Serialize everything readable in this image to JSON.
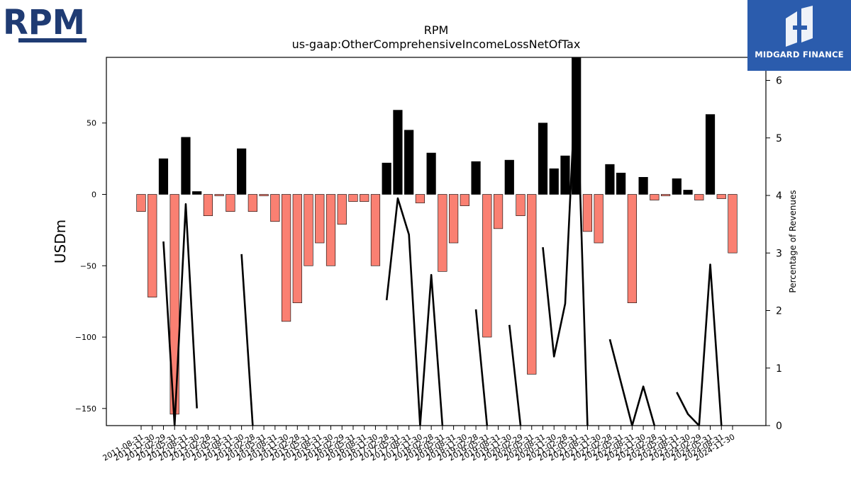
{
  "logos": {
    "company": "RPM",
    "publisher": "MIDGARD FINANCE"
  },
  "colors": {
    "negative_bar": "#fa8072",
    "positive_bar": "#000000",
    "line": "#000000",
    "publisher_bg": "#2b5cad",
    "company_logo": "#1f3b73"
  },
  "chart_data": {
    "type": "bar",
    "title": "RPM",
    "subtitle": "us-gaap:OtherComprehensiveIncomeLossNetOfTax",
    "ylabel": "USDm",
    "ylabel_right": "Percentage of Revenues",
    "ylim": [
      -162,
      96
    ],
    "ylim_right": [
      0,
      6.4
    ],
    "yticks": [
      -150,
      -100,
      -50,
      0,
      50
    ],
    "yticks_right": [
      0,
      1,
      2,
      3,
      4,
      5,
      6
    ],
    "categories": [
      "2011-08-31",
      "2011-11-30",
      "2012-02-29",
      "2012-05-31",
      "2012-08-31",
      "2012-11-30",
      "2013-02-28",
      "2013-05-31",
      "2013-08-31",
      "2013-11-30",
      "2014-02-28",
      "2014-05-31",
      "2014-08-31",
      "2014-11-30",
      "2015-02-28",
      "2015-05-31",
      "2015-08-31",
      "2015-11-30",
      "2016-02-29",
      "2016-05-31",
      "2016-08-31",
      "2016-11-30",
      "2017-02-28",
      "2017-05-31",
      "2017-08-31",
      "2017-11-30",
      "2018-02-28",
      "2018-05-31",
      "2018-08-31",
      "2018-11-30",
      "2019-02-28",
      "2019-05-31",
      "2019-08-31",
      "2019-11-30",
      "2020-02-29",
      "2020-05-31",
      "2020-08-31",
      "2020-11-30",
      "2021-02-28",
      "2021-05-31",
      "2021-08-31",
      "2021-11-30",
      "2022-02-28",
      "2022-05-31",
      "2022-08-31",
      "2022-11-30",
      "2023-02-28",
      "2023-05-31",
      "2023-08-31",
      "2023-11-30",
      "2024-02-29",
      "2024-05-31",
      "2024-08-31",
      "2024-11-30"
    ],
    "series": [
      {
        "kind": "bar",
        "axis": "left",
        "values": [
          -12,
          -72,
          25,
          -154,
          40,
          2,
          -15,
          -1,
          -12,
          32,
          -12,
          -1,
          -19,
          -89,
          -76,
          -50,
          -34,
          -50,
          -21,
          -5,
          -5,
          -50,
          22,
          59,
          45,
          -6,
          29,
          -54,
          -34,
          -8,
          23,
          -100,
          -24,
          24,
          -15,
          -126,
          50,
          18,
          27,
          97,
          -26,
          -34,
          21,
          15,
          -76,
          12,
          -4,
          -1,
          11,
          3,
          -4,
          56,
          -3,
          -41
        ]
      },
      {
        "kind": "line",
        "axis": "right",
        "values": [
          null,
          null,
          3.2,
          0,
          3.85,
          0.3,
          null,
          null,
          null,
          2.98,
          0,
          null,
          null,
          null,
          null,
          null,
          null,
          null,
          null,
          null,
          null,
          null,
          2.18,
          3.95,
          3.32,
          0,
          2.62,
          0,
          null,
          null,
          2.02,
          0,
          null,
          1.75,
          0,
          null,
          3.1,
          1.2,
          2.12,
          6.2,
          0,
          null,
          1.5,
          0.75,
          0,
          0.68,
          0,
          null,
          0.58,
          0.2,
          0,
          2.8,
          0,
          null
        ]
      }
    ],
    "grid": false,
    "legend": "none"
  }
}
